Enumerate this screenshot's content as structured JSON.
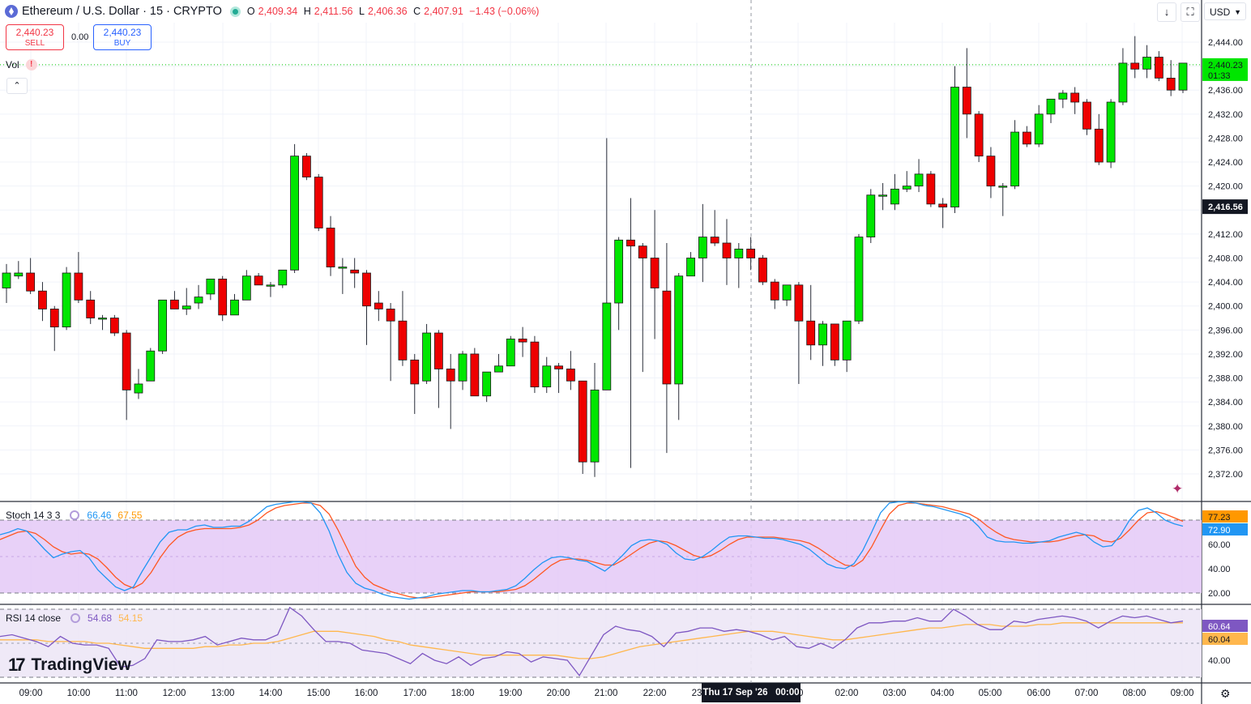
{
  "header": {
    "symbol": "Ethereum / U.S. Dollar · 15 · CRYPTO",
    "open_label": "O",
    "open": "2,409.34",
    "high_label": "H",
    "high": "2,411.56",
    "low_label": "L",
    "low": "2,406.36",
    "close_label": "C",
    "close": "2,407.91",
    "change": "−1.43 (−0.06%)"
  },
  "trade": {
    "sell_price": "2,440.23",
    "sell_label": "SELL",
    "spread": "0.00",
    "buy_price": "2,440.23",
    "buy_label": "BUY"
  },
  "volume_label": "Vol",
  "volume_warning": "!",
  "toolbar": {
    "down_icon": "↓",
    "fullscreen_icon": "⛶",
    "currency": "USD"
  },
  "logo_text": "TradingView",
  "crosshair": {
    "date_label": "Thu 17 Sep '26",
    "time_label": "00:00"
  },
  "colors": {
    "up": "#00e600",
    "down": "#ee0000",
    "stoch_k": "#2196f3",
    "stoch_d": "#ff5722",
    "rsi": "#7e57c2",
    "rsi_ma": "#ffb74d",
    "band": "#e4c9f7"
  },
  "chart_data": [
    {
      "type": "candlestick",
      "title": "Ethereum / U.S. Dollar · 15 · CRYPTO",
      "ylim": [
        2368,
        2448
      ],
      "y_ticks": [
        "2,444.00",
        "2,436.00",
        "2,432.00",
        "2,428.00",
        "2,424.00",
        "2,420.00",
        "2,412.00",
        "2,408.00",
        "2,404.00",
        "2,400.00",
        "2,396.00",
        "2,392.00",
        "2,388.00",
        "2,384.00",
        "2,380.00",
        "2,376.00",
        "2,372.00"
      ],
      "x_ticks": [
        "09:00",
        "10:00",
        "11:00",
        "12:00",
        "13:00",
        "14:00",
        "15:00",
        "16:00",
        "17:00",
        "18:00",
        "19:00",
        "20:00",
        "21:00",
        "22:00",
        "23",
        "00",
        "02:00",
        "03:00",
        "04:00",
        "05:00",
        "06:00",
        "07:00",
        "08:00",
        "09:00"
      ],
      "last_price": "2,440.23",
      "countdown": "01:33",
      "crosshair_price": "2,416.56",
      "candles": [
        [
          2403.0,
          2407.0,
          2400.5,
          2405.5
        ],
        [
          2405.0,
          2407.5,
          2404.5,
          2405.5
        ],
        [
          2405.5,
          2408.0,
          2402.0,
          2402.5
        ],
        [
          2402.5,
          2404.0,
          2397.5,
          2399.5
        ],
        [
          2399.5,
          2400.0,
          2392.5,
          2396.5
        ],
        [
          2396.5,
          2406.5,
          2396.0,
          2405.5
        ],
        [
          2405.5,
          2409.0,
          2400.5,
          2401.0
        ],
        [
          2401.0,
          2402.5,
          2397.0,
          2398.0
        ],
        [
          2398.0,
          2398.5,
          2396.0,
          2398.0
        ],
        [
          2398.0,
          2398.5,
          2395.0,
          2395.5
        ],
        [
          2395.5,
          2396.0,
          2381.0,
          2386.0
        ],
        [
          2385.5,
          2389.5,
          2384.5,
          2387.0
        ],
        [
          2387.5,
          2393.0,
          2387.5,
          2392.5
        ],
        [
          2392.5,
          2401.0,
          2392.0,
          2401.0
        ],
        [
          2401.0,
          2402.5,
          2399.5,
          2399.5
        ],
        [
          2399.5,
          2403.0,
          2398.5,
          2400.0
        ],
        [
          2400.5,
          2403.5,
          2399.5,
          2401.5
        ],
        [
          2402.0,
          2404.5,
          2401.0,
          2404.5
        ],
        [
          2404.5,
          2405.0,
          2397.5,
          2398.5
        ],
        [
          2398.5,
          2402.0,
          2398.5,
          2401.0
        ],
        [
          2401.0,
          2406.0,
          2401.0,
          2405.0
        ],
        [
          2405.0,
          2405.5,
          2403.5,
          2403.5
        ],
        [
          2403.5,
          2404.0,
          2401.5,
          2403.5
        ],
        [
          2403.5,
          2406.0,
          2403.0,
          2406.0
        ],
        [
          2406.0,
          2427.0,
          2405.5,
          2425.0
        ],
        [
          2425.0,
          2425.5,
          2421.0,
          2421.5
        ],
        [
          2421.5,
          2422.0,
          2412.5,
          2413.0
        ],
        [
          2413.0,
          2415.0,
          2405.0,
          2406.5
        ],
        [
          2406.5,
          2408.0,
          2402.0,
          2406.5
        ],
        [
          2406.0,
          2408.0,
          2403.0,
          2405.5
        ],
        [
          2405.5,
          2406.0,
          2393.5,
          2400.0
        ],
        [
          2400.5,
          2402.5,
          2397.5,
          2399.5
        ],
        [
          2399.5,
          2400.5,
          2387.5,
          2397.5
        ],
        [
          2397.5,
          2402.5,
          2390.0,
          2391.0
        ],
        [
          2391.0,
          2392.0,
          2382.0,
          2387.0
        ],
        [
          2387.5,
          2397.0,
          2387.0,
          2395.5
        ],
        [
          2395.5,
          2396.0,
          2383.0,
          2389.5
        ],
        [
          2389.5,
          2392.0,
          2379.5,
          2387.5
        ],
        [
          2387.5,
          2392.5,
          2386.0,
          2392.0
        ],
        [
          2392.0,
          2393.0,
          2385.0,
          2385.0
        ],
        [
          2385.0,
          2389.0,
          2384.0,
          2389.0
        ],
        [
          2389.0,
          2392.0,
          2389.0,
          2390.0
        ],
        [
          2390.0,
          2395.0,
          2390.0,
          2394.5
        ],
        [
          2394.5,
          2396.5,
          2391.5,
          2394.0
        ],
        [
          2394.0,
          2395.0,
          2385.5,
          2386.5
        ],
        [
          2386.5,
          2391.5,
          2385.5,
          2390.0
        ],
        [
          2390.0,
          2390.5,
          2385.5,
          2389.5
        ],
        [
          2389.5,
          2392.5,
          2386.0,
          2387.5
        ],
        [
          2387.5,
          2387.5,
          2372.0,
          2374.0
        ],
        [
          2374.0,
          2390.5,
          2371.5,
          2386.0
        ],
        [
          2386.0,
          2428.0,
          2386.0,
          2400.5
        ],
        [
          2400.5,
          2411.5,
          2396.0,
          2411.0
        ],
        [
          2411.0,
          2418.0,
          2373.0,
          2410.0
        ],
        [
          2410.0,
          2410.5,
          2389.0,
          2408.0
        ],
        [
          2408.0,
          2416.0,
          2394.5,
          2403.0
        ],
        [
          2402.5,
          2410.5,
          2375.5,
          2387.0
        ],
        [
          2387.0,
          2405.5,
          2381.0,
          2405.0
        ],
        [
          2405.0,
          2409.0,
          2405.0,
          2408.0
        ],
        [
          2408.0,
          2417.0,
          2404.0,
          2411.5
        ],
        [
          2411.5,
          2416.0,
          2410.0,
          2410.5
        ],
        [
          2410.5,
          2414.5,
          2403.5,
          2408.0
        ],
        [
          2408.0,
          2410.5,
          2403.0,
          2409.5
        ],
        [
          2409.5,
          2411.5,
          2406.0,
          2408.0
        ],
        [
          2408.0,
          2408.5,
          2403.5,
          2404.0
        ],
        [
          2404.0,
          2404.5,
          2399.5,
          2401.0
        ],
        [
          2401.0,
          2403.5,
          2400.0,
          2403.5
        ],
        [
          2403.5,
          2404.0,
          2387.0,
          2397.5
        ],
        [
          2397.5,
          2403.5,
          2391.0,
          2393.5
        ],
        [
          2393.5,
          2397.5,
          2390.0,
          2397.0
        ],
        [
          2397.0,
          2397.0,
          2390.0,
          2391.0
        ],
        [
          2391.0,
          2397.5,
          2389.0,
          2397.5
        ],
        [
          2397.5,
          2412.0,
          2397.0,
          2411.5
        ],
        [
          2411.5,
          2419.5,
          2410.5,
          2418.5
        ],
        [
          2418.5,
          2420.5,
          2416.0,
          2418.5
        ],
        [
          2417.0,
          2422.0,
          2416.0,
          2419.5
        ],
        [
          2419.5,
          2422.5,
          2419.0,
          2420.0
        ],
        [
          2420.0,
          2424.5,
          2419.0,
          2422.0
        ],
        [
          2422.0,
          2422.5,
          2416.5,
          2417.0
        ],
        [
          2417.0,
          2418.0,
          2413.0,
          2416.5
        ],
        [
          2416.5,
          2440.0,
          2415.5,
          2436.5
        ],
        [
          2436.5,
          2443.0,
          2428.0,
          2432.0
        ],
        [
          2432.0,
          2432.5,
          2424.0,
          2425.0
        ],
        [
          2425.0,
          2426.5,
          2418.0,
          2420.0
        ],
        [
          2420.0,
          2420.5,
          2415.0,
          2420.0
        ],
        [
          2420.0,
          2431.0,
          2419.5,
          2429.0
        ],
        [
          2429.0,
          2430.0,
          2426.5,
          2427.0
        ],
        [
          2427.0,
          2433.5,
          2426.5,
          2432.0
        ],
        [
          2432.0,
          2434.5,
          2430.5,
          2434.5
        ],
        [
          2434.5,
          2436.0,
          2433.0,
          2435.5
        ],
        [
          2435.5,
          2436.5,
          2432.0,
          2434.0
        ],
        [
          2434.0,
          2434.5,
          2428.5,
          2429.5
        ],
        [
          2429.5,
          2432.0,
          2423.5,
          2424.0
        ],
        [
          2424.0,
          2434.5,
          2423.0,
          2434.0
        ],
        [
          2434.0,
          2443.0,
          2433.5,
          2440.5
        ],
        [
          2440.5,
          2445.0,
          2438.0,
          2439.5
        ],
        [
          2439.5,
          2443.5,
          2438.0,
          2441.5
        ],
        [
          2441.5,
          2442.5,
          2437.5,
          2438.0
        ],
        [
          2438.0,
          2441.0,
          2435.0,
          2436.0
        ],
        [
          2436.0,
          2440.5,
          2435.5,
          2440.5
        ]
      ]
    },
    {
      "type": "line",
      "title": "Stoch 14 3 3",
      "values_label": [
        "66.46",
        "67.55"
      ],
      "ylim": [
        10,
        100
      ],
      "y_ticks": [
        "60.00",
        "40.00",
        "20.00"
      ],
      "band": [
        20,
        80
      ],
      "k_tag": "77.23",
      "d_tag": "72.90",
      "series": [
        {
          "values": [
            68,
            70,
            73,
            71,
            64,
            56,
            49,
            52,
            54,
            55,
            49,
            39,
            32,
            25,
            22,
            25,
            38,
            50,
            62,
            70,
            72,
            72,
            75,
            76,
            74,
            74,
            75,
            75,
            79,
            85,
            91,
            93,
            94,
            95,
            95,
            94,
            86,
            71,
            52,
            37,
            28,
            24,
            22,
            19,
            17,
            16,
            15,
            16,
            17,
            19,
            20,
            21,
            22,
            22,
            21,
            21,
            22,
            23,
            26,
            32,
            39,
            45,
            49,
            50,
            49,
            47,
            46,
            42,
            38,
            44,
            51,
            59,
            63,
            64,
            63,
            60,
            53,
            48,
            47,
            50,
            55,
            61,
            66,
            67,
            67,
            66,
            65,
            65,
            64,
            62,
            60,
            56,
            50,
            44,
            41,
            40,
            44,
            55,
            70,
            86,
            94,
            95,
            95,
            94,
            92,
            91,
            89,
            87,
            85,
            82,
            75,
            66,
            63,
            62,
            62,
            61,
            61,
            62,
            63,
            66,
            68,
            70,
            68,
            62,
            58,
            59,
            68,
            80,
            88,
            90,
            86,
            80,
            77,
            75
          ]
        },
        {
          "values": [
            64,
            67,
            70,
            71,
            69,
            64,
            58,
            54,
            52,
            53,
            52,
            48,
            41,
            33,
            27,
            24,
            28,
            37,
            49,
            59,
            66,
            70,
            72,
            73,
            73,
            73,
            73,
            74,
            76,
            80,
            86,
            90,
            92,
            93,
            94,
            94,
            92,
            85,
            72,
            57,
            42,
            33,
            27,
            24,
            21,
            19,
            17,
            16,
            16,
            17,
            18,
            19,
            20,
            21,
            21,
            21,
            21,
            22,
            23,
            26,
            31,
            37,
            43,
            47,
            48,
            48,
            47,
            45,
            43,
            43,
            47,
            52,
            57,
            61,
            63,
            62,
            59,
            55,
            51,
            49,
            51,
            55,
            60,
            64,
            66,
            66,
            66,
            66,
            65,
            64,
            63,
            61,
            57,
            52,
            47,
            43,
            42,
            47,
            58,
            72,
            85,
            92,
            94,
            94,
            93,
            92,
            91,
            89,
            87,
            85,
            81,
            75,
            70,
            66,
            64,
            63,
            62,
            62,
            62,
            63,
            65,
            67,
            68,
            67,
            63,
            62,
            65,
            72,
            80,
            86,
            87,
            85,
            82,
            79
          ]
        }
      ]
    },
    {
      "type": "line",
      "title": "RSI 14 close",
      "values_label": [
        "54.68",
        "54.15"
      ],
      "ylim": [
        20,
        80
      ],
      "y_ticks": [
        "40.00"
      ],
      "band": [
        30,
        70
      ],
      "rsi_tag": "60.64",
      "ma_tag": "60.04",
      "series": [
        {
          "values": [
            54,
            55,
            53,
            51,
            48,
            54,
            50,
            49,
            49,
            47,
            36,
            37,
            41,
            52,
            51,
            51,
            52,
            54,
            49,
            51,
            53,
            52,
            52,
            55,
            71,
            66,
            58,
            51,
            51,
            50,
            46,
            45,
            44,
            41,
            38,
            44,
            40,
            38,
            42,
            37,
            41,
            42,
            45,
            44,
            39,
            42,
            41,
            40,
            31,
            43,
            55,
            60,
            58,
            57,
            54,
            48,
            56,
            57,
            59,
            59,
            57,
            58,
            57,
            55,
            52,
            54,
            48,
            47,
            50,
            47,
            52,
            59,
            62,
            62,
            63,
            63,
            65,
            63,
            63,
            70,
            66,
            61,
            58,
            58,
            63,
            62,
            64,
            65,
            66,
            65,
            63,
            59,
            63,
            66,
            65,
            66,
            64,
            62,
            63
          ]
        },
        {
          "values": [
            52,
            52,
            52,
            52,
            51,
            51,
            51,
            51,
            50,
            50,
            49,
            48,
            47,
            47,
            47,
            47,
            47,
            48,
            48,
            49,
            49,
            50,
            50,
            51,
            53,
            55,
            57,
            57,
            57,
            56,
            55,
            54,
            52,
            51,
            49,
            48,
            47,
            46,
            45,
            44,
            43,
            43,
            43,
            43,
            43,
            43,
            43,
            42,
            41,
            41,
            42,
            44,
            46,
            48,
            49,
            50,
            51,
            52,
            53,
            54,
            55,
            56,
            57,
            57,
            57,
            56,
            55,
            54,
            53,
            52,
            52,
            53,
            54,
            55,
            56,
            57,
            58,
            59,
            59,
            60,
            61,
            61,
            61,
            60,
            60,
            60,
            61,
            61,
            62,
            62,
            62,
            62,
            62,
            62,
            62,
            62,
            62,
            62,
            62
          ]
        }
      ]
    }
  ]
}
